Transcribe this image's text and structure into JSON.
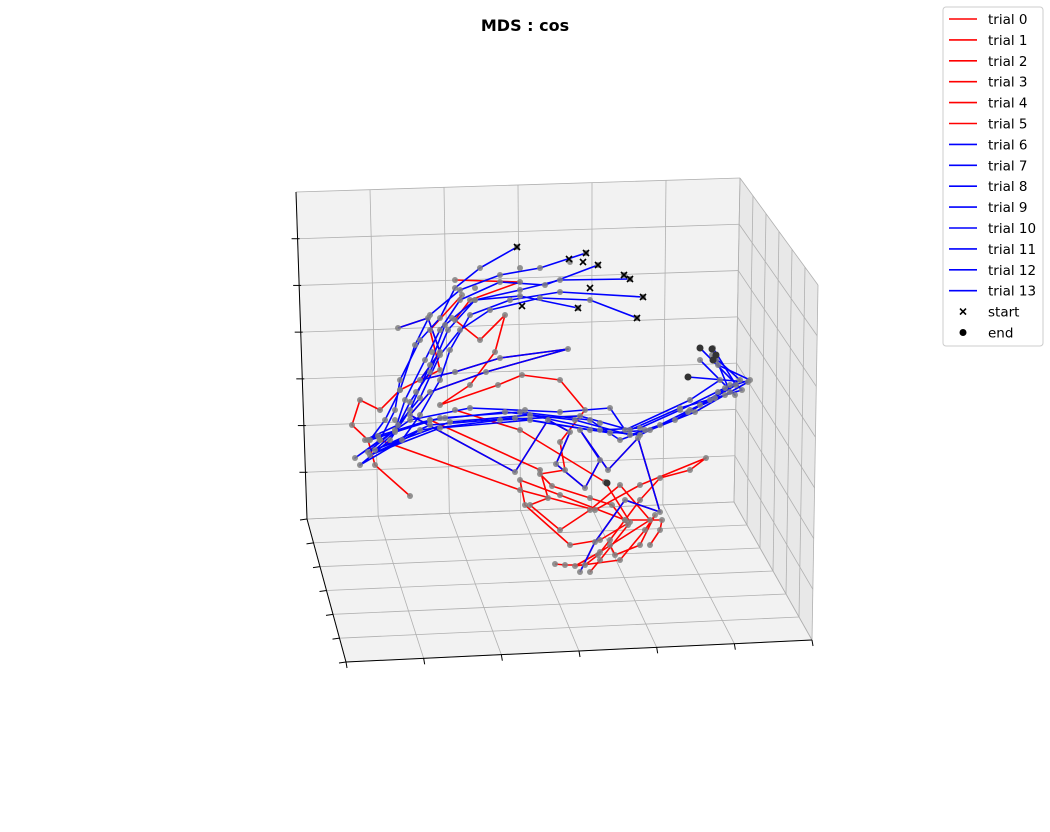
{
  "chart_data": {
    "type": "line",
    "title": "MDS : cos",
    "xlabel": "",
    "ylabel": "",
    "zlabel": "",
    "projection": "3d",
    "grid": true,
    "tick_labels_shown": false,
    "legend_position": "top-right",
    "colors": {
      "group_a": "#ff0000",
      "group_b": "#0000ff",
      "points": "#808080",
      "markers": "#000000"
    },
    "series": [
      {
        "name": "trial 0",
        "color": "#ff0000"
      },
      {
        "name": "trial 1",
        "color": "#ff0000"
      },
      {
        "name": "trial 2",
        "color": "#ff0000"
      },
      {
        "name": "trial 3",
        "color": "#ff0000"
      },
      {
        "name": "trial 4",
        "color": "#ff0000"
      },
      {
        "name": "trial 5",
        "color": "#ff0000"
      },
      {
        "name": "trial 6",
        "color": "#0000ff"
      },
      {
        "name": "trial 7",
        "color": "#0000ff"
      },
      {
        "name": "trial 8",
        "color": "#0000ff"
      },
      {
        "name": "trial 9",
        "color": "#0000ff"
      },
      {
        "name": "trial 10",
        "color": "#0000ff"
      },
      {
        "name": "trial 11",
        "color": "#0000ff"
      },
      {
        "name": "trial 12",
        "color": "#0000ff"
      },
      {
        "name": "trial 13",
        "color": "#0000ff"
      }
    ],
    "markers": [
      {
        "name": "start",
        "shape": "x"
      },
      {
        "name": "end",
        "shape": "circle"
      }
    ]
  }
}
